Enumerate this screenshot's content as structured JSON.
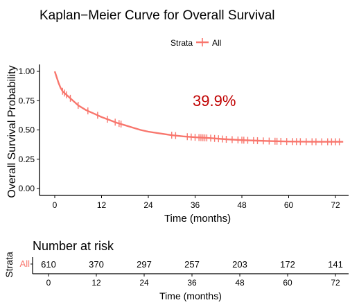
{
  "chart_data": {
    "type": "line",
    "title": "Kaplan−Meier Curve for Overall Survival",
    "xlabel": "Time (months)",
    "ylabel": "Overall Survival Probability",
    "legend": {
      "title": "Strata",
      "placement": "top",
      "entries": [
        "All"
      ]
    },
    "annotation": "39.9%",
    "xlim": [
      -4,
      74
    ],
    "ylim": [
      0,
      1
    ],
    "x_ticks": [
      0,
      12,
      24,
      36,
      48,
      60,
      72
    ],
    "y_ticks": [
      0.0,
      0.25,
      0.5,
      0.75,
      1.0
    ],
    "y_tick_labels": [
      "0.00",
      "0.25",
      "0.50",
      "0.75",
      "1.00"
    ],
    "grid": false,
    "series": [
      {
        "name": "All",
        "color": "#F8766D",
        "x": [
          0,
          0.5,
          1,
          1.5,
          2,
          3,
          4,
          5,
          6,
          8,
          10,
          12,
          14,
          16,
          18,
          20,
          22,
          24,
          27,
          30,
          33,
          36,
          40,
          44,
          48,
          52,
          56,
          60,
          64,
          68,
          72,
          74
        ],
        "y": [
          1.0,
          0.95,
          0.9,
          0.86,
          0.83,
          0.8,
          0.77,
          0.74,
          0.71,
          0.67,
          0.64,
          0.61,
          0.585,
          0.56,
          0.54,
          0.52,
          0.5,
          0.485,
          0.47,
          0.455,
          0.445,
          0.437,
          0.43,
          0.42,
          0.413,
          0.408,
          0.404,
          0.401,
          0.4,
          0.399,
          0.399,
          0.399
        ],
        "censor_x": [
          2.0,
          2.5,
          3.0,
          4.0,
          6.0,
          8.5,
          11.0,
          13.5,
          15.5,
          16.5,
          17.0,
          30.0,
          31.0,
          34.0,
          35.0,
          36.0,
          37.0,
          37.5,
          38.0,
          38.5,
          39.0,
          40.0,
          41.0,
          42.0,
          43.0,
          44.0,
          45.5,
          47.0,
          48.0,
          48.5,
          49.5,
          51.0,
          52.0,
          53.5,
          55.0,
          56.5,
          57.0,
          58.0,
          59.5,
          61.0,
          62.0,
          63.0,
          64.5,
          66.0,
          67.0,
          68.5,
          70.0,
          71.0,
          72.0,
          73.0
        ]
      }
    ]
  },
  "risk_table": {
    "title": "Number at risk",
    "ylabel": "Strata",
    "strata_label": "All",
    "xlabel": "Time (months)",
    "x_ticks": [
      0,
      12,
      24,
      36,
      48,
      60,
      72
    ],
    "counts": [
      610,
      370,
      297,
      257,
      203,
      172,
      141
    ]
  }
}
